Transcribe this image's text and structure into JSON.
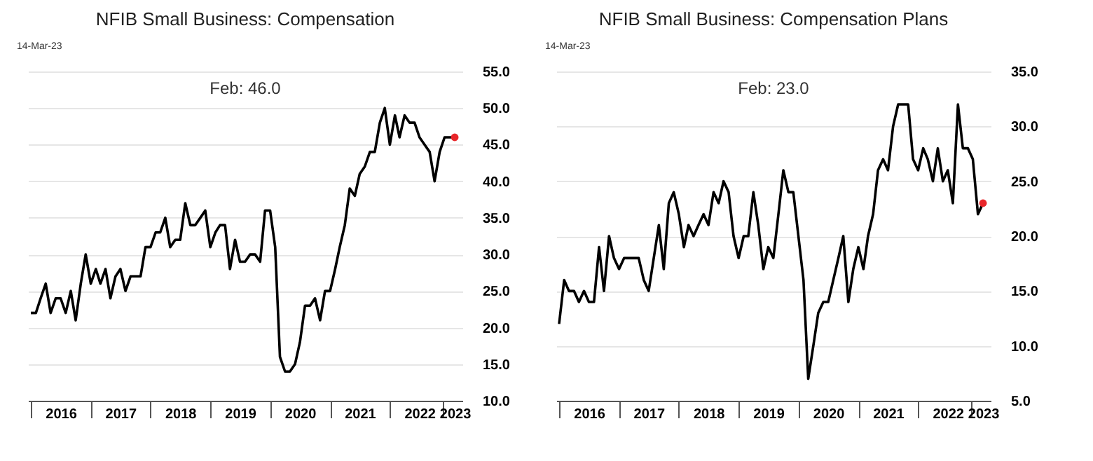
{
  "chart_data": [
    {
      "type": "line",
      "title": "NFIB Small Business: Compensation",
      "annotations": [
        "14-Mar-23",
        "Feb:   46.0"
      ],
      "x": [
        "2016-01",
        "2016-02",
        "2016-03",
        "2016-04",
        "2016-05",
        "2016-06",
        "2016-07",
        "2016-08",
        "2016-09",
        "2016-10",
        "2016-11",
        "2016-12",
        "2017-01",
        "2017-02",
        "2017-03",
        "2017-04",
        "2017-05",
        "2017-06",
        "2017-07",
        "2017-08",
        "2017-09",
        "2017-10",
        "2017-11",
        "2017-12",
        "2018-01",
        "2018-02",
        "2018-03",
        "2018-04",
        "2018-05",
        "2018-06",
        "2018-07",
        "2018-08",
        "2018-09",
        "2018-10",
        "2018-11",
        "2018-12",
        "2019-01",
        "2019-02",
        "2019-03",
        "2019-04",
        "2019-05",
        "2019-06",
        "2019-07",
        "2019-08",
        "2019-09",
        "2019-10",
        "2019-11",
        "2019-12",
        "2020-01",
        "2020-02",
        "2020-03",
        "2020-04",
        "2020-05",
        "2020-06",
        "2020-07",
        "2020-08",
        "2020-09",
        "2020-10",
        "2020-11",
        "2020-12",
        "2021-01",
        "2021-02",
        "2021-03",
        "2021-04",
        "2021-05",
        "2021-06",
        "2021-07",
        "2021-08",
        "2021-09",
        "2021-10",
        "2021-11",
        "2021-12",
        "2022-01",
        "2022-02",
        "2022-03",
        "2022-04",
        "2022-05",
        "2022-06",
        "2022-07",
        "2022-08",
        "2022-09",
        "2022-10",
        "2022-11",
        "2022-12",
        "2023-01",
        "2023-02"
      ],
      "xlim": [
        "2015-12-15",
        "2023-03-20"
      ],
      "xticks": [
        {
          "value": "2016-01",
          "label": null
        },
        {
          "value": "2016-07",
          "label": "2016"
        },
        {
          "value": "2017-01",
          "label": null
        },
        {
          "value": "2017-07",
          "label": "2017"
        },
        {
          "value": "2018-01",
          "label": null
        },
        {
          "value": "2018-07",
          "label": "2018"
        },
        {
          "value": "2019-01",
          "label": null
        },
        {
          "value": "2019-07",
          "label": "2019"
        },
        {
          "value": "2020-01",
          "label": null
        },
        {
          "value": "2020-07",
          "label": "2020"
        },
        {
          "value": "2021-01",
          "label": null
        },
        {
          "value": "2021-07",
          "label": "2021"
        },
        {
          "value": "2022-01",
          "label": null
        },
        {
          "value": "2022-07",
          "label": "2022"
        },
        {
          "value": "2022-11-20",
          "label": null
        },
        {
          "value": "2023-02",
          "label": "2023"
        }
      ],
      "ylim": [
        10,
        55
      ],
      "yticks": [
        {
          "value": 10,
          "label": "10.0"
        },
        {
          "value": 15,
          "label": "15.0"
        },
        {
          "value": 20,
          "label": "20.0"
        },
        {
          "value": 25,
          "label": "25.0"
        },
        {
          "value": 30,
          "label": "30.0"
        },
        {
          "value": 35,
          "label": "35.0"
        },
        {
          "value": 40,
          "label": "40.0"
        },
        {
          "value": 45,
          "label": "45.0"
        },
        {
          "value": 50,
          "label": "50.0"
        },
        {
          "value": 55,
          "label": "55.0"
        }
      ],
      "grid": "y",
      "marker": "none",
      "line_style": "solid",
      "series": [
        {
          "color": "#000000",
          "values": [
            22,
            22,
            24,
            26,
            22,
            24,
            24,
            22,
            25,
            21,
            26,
            30,
            26,
            28,
            26,
            28,
            24,
            27,
            28,
            25,
            27,
            27,
            27,
            31,
            31,
            33,
            33,
            35,
            31,
            32,
            32,
            37,
            34,
            34,
            35,
            36,
            31,
            33,
            34,
            34,
            28,
            32,
            29,
            29,
            30,
            30,
            29,
            36,
            36,
            31,
            16,
            14,
            14,
            15,
            18,
            23,
            23,
            24,
            21,
            25,
            25,
            28,
            31,
            34,
            39,
            38,
            41,
            42,
            44,
            44,
            48,
            50,
            45,
            49,
            46,
            49,
            48,
            48,
            46,
            45,
            44,
            40,
            44,
            46,
            46,
            46
          ]
        },
        {
          "type": "scatter",
          "marker": "circle",
          "color": "#e8262a",
          "x": [
            "2023-02"
          ],
          "values": [
            46
          ]
        }
      ]
    },
    {
      "type": "line",
      "title": "NFIB Small Business: Compensation Plans",
      "annotations": [
        "14-Mar-23",
        "Feb:   23.0"
      ],
      "x": [
        "2016-01",
        "2016-02",
        "2016-03",
        "2016-04",
        "2016-05",
        "2016-06",
        "2016-07",
        "2016-08",
        "2016-09",
        "2016-10",
        "2016-11",
        "2016-12",
        "2017-01",
        "2017-02",
        "2017-03",
        "2017-04",
        "2017-05",
        "2017-06",
        "2017-07",
        "2017-08",
        "2017-09",
        "2017-10",
        "2017-11",
        "2017-12",
        "2018-01",
        "2018-02",
        "2018-03",
        "2018-04",
        "2018-05",
        "2018-06",
        "2018-07",
        "2018-08",
        "2018-09",
        "2018-10",
        "2018-11",
        "2018-12",
        "2019-01",
        "2019-02",
        "2019-03",
        "2019-04",
        "2019-05",
        "2019-06",
        "2019-07",
        "2019-08",
        "2019-09",
        "2019-10",
        "2019-11",
        "2019-12",
        "2020-01",
        "2020-02",
        "2020-03",
        "2020-04",
        "2020-05",
        "2020-06",
        "2020-07",
        "2020-08",
        "2020-09",
        "2020-10",
        "2020-11",
        "2020-12",
        "2021-01",
        "2021-02",
        "2021-03",
        "2021-04",
        "2021-05",
        "2021-06",
        "2021-07",
        "2021-08",
        "2021-09",
        "2021-10",
        "2021-11",
        "2021-12",
        "2022-01",
        "2022-02",
        "2022-03",
        "2022-04",
        "2022-05",
        "2022-06",
        "2022-07",
        "2022-08",
        "2022-09",
        "2022-10",
        "2022-11",
        "2022-12",
        "2023-01",
        "2023-02"
      ],
      "xlim": [
        "2015-12-15",
        "2023-03-20"
      ],
      "xticks": [
        {
          "value": "2016-01",
          "label": null
        },
        {
          "value": "2016-07",
          "label": "2016"
        },
        {
          "value": "2017-01",
          "label": null
        },
        {
          "value": "2017-07",
          "label": "2017"
        },
        {
          "value": "2018-01",
          "label": null
        },
        {
          "value": "2018-07",
          "label": "2018"
        },
        {
          "value": "2019-01",
          "label": null
        },
        {
          "value": "2019-07",
          "label": "2019"
        },
        {
          "value": "2020-01",
          "label": null
        },
        {
          "value": "2020-07",
          "label": "2020"
        },
        {
          "value": "2021-01",
          "label": null
        },
        {
          "value": "2021-07",
          "label": "2021"
        },
        {
          "value": "2022-01",
          "label": null
        },
        {
          "value": "2022-07",
          "label": "2022"
        },
        {
          "value": "2022-11-20",
          "label": null
        },
        {
          "value": "2023-02",
          "label": "2023"
        }
      ],
      "ylim": [
        5,
        35
      ],
      "yticks": [
        {
          "value": 5,
          "label": "5.0"
        },
        {
          "value": 10,
          "label": "10.0"
        },
        {
          "value": 15,
          "label": "15.0"
        },
        {
          "value": 20,
          "label": "20.0"
        },
        {
          "value": 25,
          "label": "25.0"
        },
        {
          "value": 30,
          "label": "30.0"
        },
        {
          "value": 35,
          "label": "35.0"
        }
      ],
      "grid": "y",
      "marker": "none",
      "line_style": "solid",
      "series": [
        {
          "color": "#000000",
          "values": [
            12,
            16,
            15,
            15,
            14,
            15,
            14,
            14,
            19,
            15,
            20,
            18,
            17,
            18,
            18,
            18,
            18,
            16,
            15,
            18,
            21,
            17,
            23,
            24,
            22,
            19,
            21,
            20,
            21,
            22,
            21,
            24,
            23,
            25,
            24,
            20,
            18,
            20,
            20,
            24,
            21,
            17,
            19,
            18,
            22,
            26,
            24,
            24,
            20,
            16,
            7,
            10,
            13,
            14,
            14,
            16,
            18,
            20,
            14,
            17,
            19,
            17,
            20,
            22,
            26,
            27,
            26,
            30,
            32,
            32,
            32,
            27,
            26,
            28,
            27,
            25,
            28,
            25,
            26,
            23,
            32,
            28,
            28,
            27,
            22,
            23
          ]
        },
        {
          "type": "scatter",
          "marker": "circle",
          "color": "#e8262a",
          "x": [
            "2023-02"
          ],
          "values": [
            23
          ]
        }
      ]
    }
  ]
}
